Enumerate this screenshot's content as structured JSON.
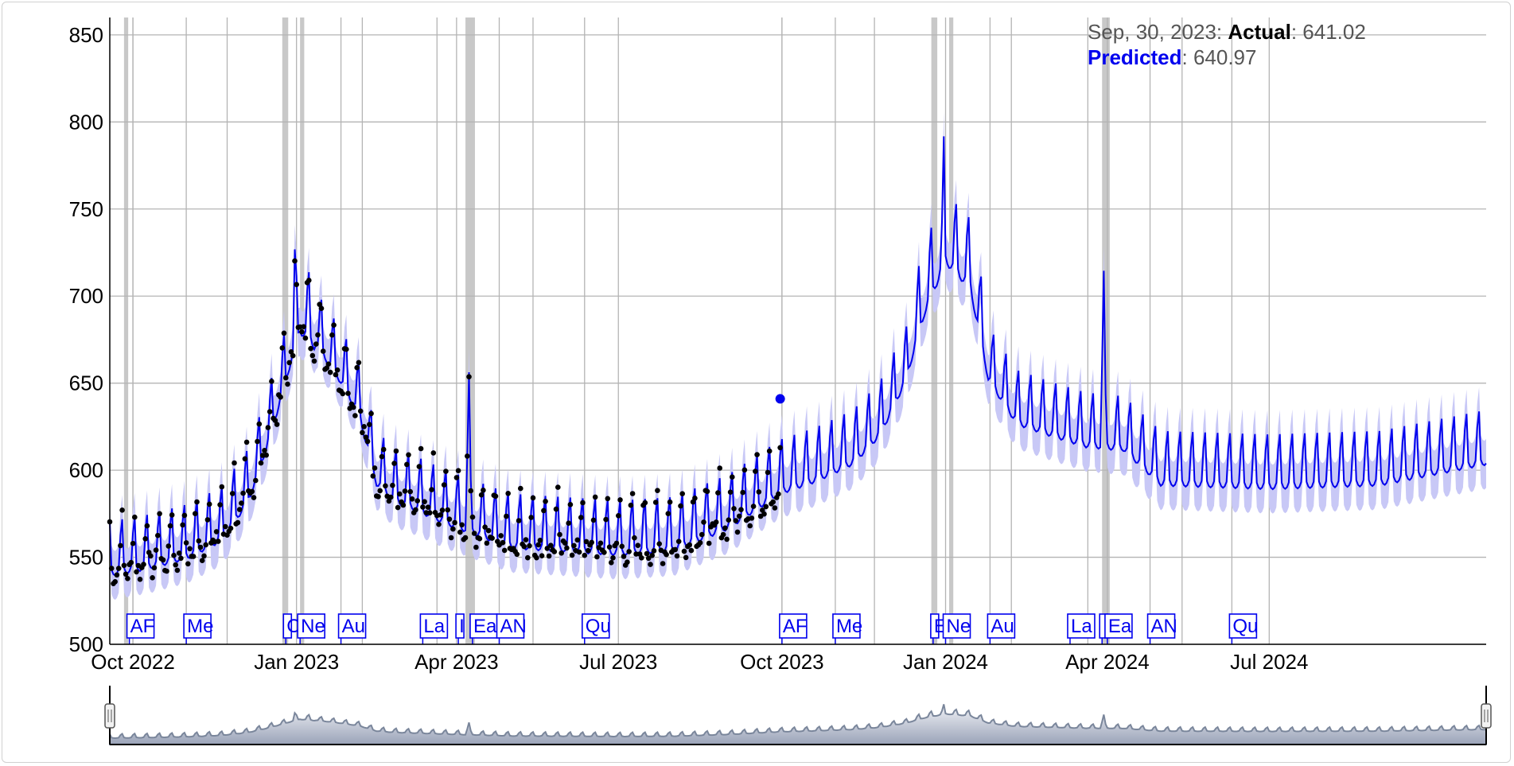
{
  "readout": {
    "date": "Sep, 30, 2023",
    "actual_label": "Actual",
    "actual_value": "641.02",
    "predicted_label": "Predicted",
    "predicted_value": "640.97"
  },
  "colors": {
    "predicted": "#0000ee",
    "interval": "#c8c8f6",
    "actual": "#000000",
    "grid": "#b4b4b4",
    "holiday_band": "#c8c8c8",
    "range_fill": "#d9dce6",
    "range_line": "#7a869b"
  },
  "chart_data": {
    "type": "line",
    "series": [
      {
        "name": "Actual",
        "values": []
      },
      {
        "name": "Predicted",
        "values": []
      }
    ],
    "x_range": [
      "2022-09-18",
      "2024-10-31"
    ],
    "ylim": [
      500,
      860
    ],
    "y_ticks": [
      500,
      550,
      600,
      650,
      700,
      750,
      800,
      850
    ],
    "x_ticks": [
      {
        "date": "2022-10-01",
        "label": "Oct 2022"
      },
      {
        "date": "2023-01-01",
        "label": "Jan 2023"
      },
      {
        "date": "2023-04-01",
        "label": "Apr 2023"
      },
      {
        "date": "2023-07-01",
        "label": "Jul 2023"
      },
      {
        "date": "2023-10-01",
        "label": "Oct 2023"
      },
      {
        "date": "2024-01-01",
        "label": "Jan 2024"
      },
      {
        "date": "2024-04-01",
        "label": "Apr 2024"
      },
      {
        "date": "2024-07-01",
        "label": "Jul 2024"
      }
    ],
    "grid": true,
    "selected_point": {
      "date": "2023-09-30",
      "actual": 641.02,
      "predicted": 640.97
    },
    "trend_knots": [
      [
        "2022-09-18",
        548
      ],
      [
        "2022-10-10",
        552
      ],
      [
        "2022-11-01",
        558
      ],
      [
        "2022-11-20",
        568
      ],
      [
        "2022-12-05",
        590
      ],
      [
        "2022-12-15",
        620
      ],
      [
        "2022-12-25",
        655
      ],
      [
        "2023-01-03",
        690
      ],
      [
        "2023-01-12",
        680
      ],
      [
        "2023-01-25",
        660
      ],
      [
        "2023-02-05",
        640
      ],
      [
        "2023-02-15",
        600
      ],
      [
        "2023-02-25",
        590
      ],
      [
        "2023-03-10",
        585
      ],
      [
        "2023-03-25",
        578
      ],
      [
        "2023-04-10",
        572
      ],
      [
        "2023-05-01",
        564
      ],
      [
        "2023-06-01",
        562
      ],
      [
        "2023-07-01",
        560
      ],
      [
        "2023-08-01",
        562
      ],
      [
        "2023-09-01",
        575
      ],
      [
        "2023-09-30",
        595
      ],
      [
        "2023-10-20",
        602
      ],
      [
        "2023-11-10",
        612
      ],
      [
        "2023-11-25",
        628
      ],
      [
        "2023-12-10",
        660
      ],
      [
        "2023-12-20",
        700
      ],
      [
        "2024-01-01",
        730
      ],
      [
        "2024-01-15",
        715
      ],
      [
        "2024-01-25",
        660
      ],
      [
        "2024-02-10",
        635
      ],
      [
        "2024-03-01",
        628
      ],
      [
        "2024-03-20",
        622
      ],
      [
        "2024-04-10",
        620
      ],
      [
        "2024-05-01",
        600
      ],
      [
        "2024-07-01",
        598
      ],
      [
        "2024-09-01",
        600
      ],
      [
        "2024-10-31",
        612
      ]
    ],
    "weekly_amplitude": 45,
    "holiday_bands": [
      {
        "start": "2022-09-26",
        "end": "2022-09-27"
      },
      {
        "start": "2022-12-24",
        "end": "2022-12-26"
      },
      {
        "start": "2023-01-03",
        "end": "2023-01-04"
      },
      {
        "start": "2023-04-06",
        "end": "2023-04-10"
      },
      {
        "start": "2023-12-24",
        "end": "2023-12-26"
      },
      {
        "start": "2024-01-03",
        "end": "2024-01-04"
      },
      {
        "start": "2024-03-29",
        "end": "2024-04-01"
      }
    ],
    "holiday_lines": [
      "2022-10-01",
      "2022-10-31",
      "2022-11-23",
      "2023-01-26",
      "2023-02-07",
      "2023-03-21",
      "2023-04-25",
      "2023-05-14",
      "2023-06-12",
      "2023-10-01",
      "2023-10-31",
      "2023-11-22",
      "2024-01-26",
      "2024-02-07",
      "2024-03-21",
      "2024-04-25",
      "2024-05-13",
      "2024-06-10"
    ],
    "annotations": [
      {
        "date": "2022-09-29",
        "label": "AF"
      },
      {
        "date": "2022-10-31",
        "label": "Me"
      },
      {
        "date": "2022-12-26",
        "label": "C"
      },
      {
        "date": "2023-01-03",
        "label": "Ne"
      },
      {
        "date": "2023-01-26",
        "label": "Au"
      },
      {
        "date": "2023-03-13",
        "label": "La"
      },
      {
        "date": "2023-04-02",
        "label": "I"
      },
      {
        "date": "2023-04-10",
        "label": "Ea"
      },
      {
        "date": "2023-04-25",
        "label": "AN"
      },
      {
        "date": "2023-06-12",
        "label": "Qu"
      },
      {
        "date": "2023-10-01",
        "label": "AF"
      },
      {
        "date": "2023-10-31",
        "label": "Me"
      },
      {
        "date": "2023-12-25",
        "label": "E"
      },
      {
        "date": "2024-01-01",
        "label": "Ne"
      },
      {
        "date": "2024-01-26",
        "label": "Au"
      },
      {
        "date": "2024-03-11",
        "label": "La"
      },
      {
        "date": "2024-03-29",
        "label": "I"
      },
      {
        "date": "2024-04-01",
        "label": "Ea"
      },
      {
        "date": "2024-04-25",
        "label": "AN"
      },
      {
        "date": "2024-06-10",
        "label": "Qu"
      }
    ]
  }
}
